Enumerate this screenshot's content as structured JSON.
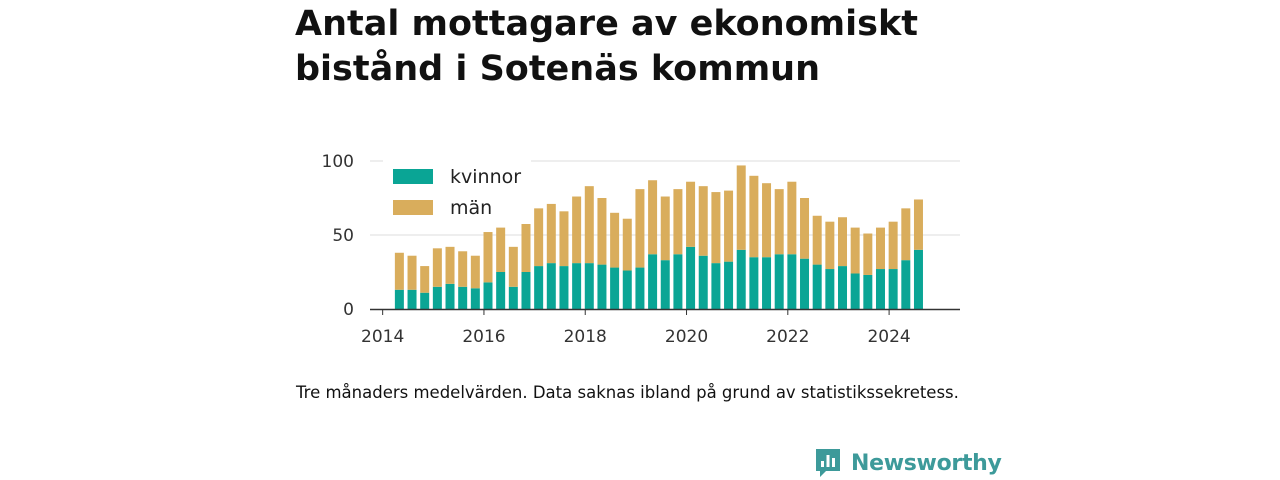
{
  "title_line1": "Antal mottagare av ekonomiskt",
  "title_line2": "bistånd i Sotenäs kommun",
  "caption": "Tre månaders medelvärden. Data saknas ibland på grund av statistikssekretess.",
  "brand": {
    "name": "Newsworthy",
    "icon": "newsworthy-logo-icon",
    "color": "#3d9a9a"
  },
  "colors": {
    "kvinnor": "#0aa595",
    "man": "#d9ad5c",
    "grid": "#dddddd",
    "axis": "#333333"
  },
  "chart_data": {
    "type": "bar",
    "stacked": true,
    "ylim": [
      0,
      100
    ],
    "yticks": [
      0,
      50,
      100
    ],
    "xticks": [
      "2014",
      "2016",
      "2018",
      "2020",
      "2022",
      "2024"
    ],
    "xrange": [
      2013.75,
      2025.4
    ],
    "grid": true,
    "legend_position": "top-left",
    "series": [
      {
        "name": "kvinnor",
        "x": [
          2014.33,
          2014.58,
          2014.83,
          2015.08,
          2015.33,
          2015.58,
          2015.83,
          2016.08,
          2016.33,
          2016.58,
          2016.83,
          2017.08,
          2017.33,
          2017.58,
          2017.83,
          2018.08,
          2018.33,
          2018.58,
          2018.83,
          2019.08,
          2019.33,
          2019.58,
          2019.83,
          2020.08,
          2020.33,
          2020.58,
          2020.83,
          2021.08,
          2021.33,
          2021.58,
          2021.83,
          2022.08,
          2022.33,
          2022.58,
          2022.83,
          2023.08,
          2023.33,
          2023.58,
          2023.83,
          2024.08,
          2024.33,
          2024.58
        ],
        "values": [
          13,
          13,
          11,
          15,
          17,
          15,
          14,
          18,
          25,
          15,
          25,
          29,
          31,
          29,
          31,
          31,
          30,
          28,
          26,
          28,
          37,
          33,
          37,
          42,
          36,
          31,
          32,
          40,
          35,
          35,
          37,
          37,
          34,
          30,
          27,
          29,
          24,
          23,
          27,
          27,
          33,
          40
        ]
      },
      {
        "name": "män",
        "x": [
          2014.33,
          2014.58,
          2014.83,
          2015.08,
          2015.33,
          2015.58,
          2015.83,
          2016.08,
          2016.33,
          2016.58,
          2016.83,
          2017.08,
          2017.33,
          2017.58,
          2017.83,
          2018.08,
          2018.33,
          2018.58,
          2018.83,
          2019.08,
          2019.33,
          2019.58,
          2019.83,
          2020.08,
          2020.33,
          2020.58,
          2020.83,
          2021.08,
          2021.33,
          2021.58,
          2021.83,
          2022.08,
          2022.33,
          2022.58,
          2022.83,
          2023.08,
          2023.33,
          2023.58,
          2023.83,
          2024.08,
          2024.33,
          2024.58
        ],
        "values": [
          25,
          23,
          18,
          26,
          25,
          24,
          22,
          34,
          30,
          27,
          33,
          39,
          40,
          37,
          45,
          52,
          45,
          37,
          35,
          53,
          50,
          43,
          44,
          44,
          47,
          48,
          48,
          57,
          55,
          50,
          44,
          49,
          41,
          33,
          32,
          33,
          31,
          28,
          28,
          32,
          35,
          34
        ]
      }
    ]
  }
}
